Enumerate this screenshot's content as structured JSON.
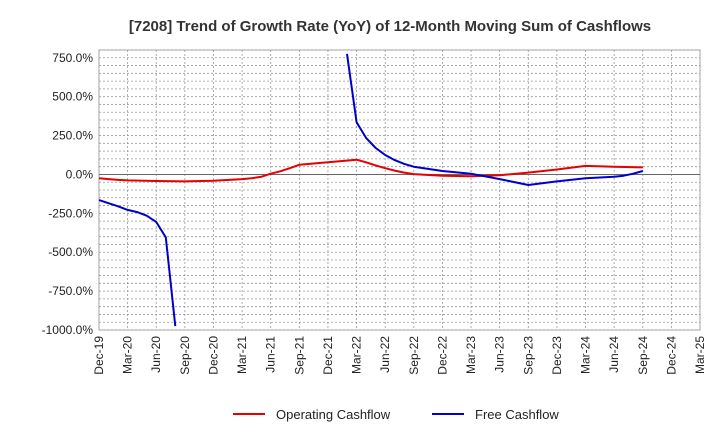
{
  "chart_data": {
    "type": "line",
    "title": "[7208]  Trend of Growth Rate (YoY) of 12-Month Moving Sum of Cashflows",
    "xlabel": "",
    "ylabel": "",
    "ylim": [
      -1000,
      800
    ],
    "grid": true,
    "legend_position": "bottom",
    "y_ticks": [
      {
        "value": 750,
        "label": "750.0%"
      },
      {
        "value": 500,
        "label": "500.0%"
      },
      {
        "value": 250,
        "label": "250.0%"
      },
      {
        "value": 0,
        "label": "0.0%"
      },
      {
        "value": -250,
        "label": "-250.0%"
      },
      {
        "value": -500,
        "label": "-500.0%"
      },
      {
        "value": -750,
        "label": "-750.0%"
      },
      {
        "value": -1000,
        "label": "-1000.0%"
      }
    ],
    "x_ticks": [
      "Dec-19",
      "Mar-20",
      "Jun-20",
      "Sep-20",
      "Dec-20",
      "Mar-21",
      "Jun-21",
      "Sep-21",
      "Dec-21",
      "Mar-22",
      "Jun-22",
      "Sep-22",
      "Dec-22",
      "Mar-23",
      "Jun-23",
      "Sep-23",
      "Dec-23",
      "Mar-24",
      "Jun-24",
      "Sep-24",
      "Dec-24",
      "Mar-25"
    ],
    "series": [
      {
        "name": "Operating Cashflow",
        "color": "#e60000",
        "points": [
          {
            "x": "Dec-19",
            "y": -25
          },
          {
            "x": "Jan-20",
            "y": -30
          },
          {
            "x": "Feb-20",
            "y": -35
          },
          {
            "x": "Mar-20",
            "y": -38
          },
          {
            "x": "Jun-20",
            "y": -42
          },
          {
            "x": "Sep-20",
            "y": -45
          },
          {
            "x": "Dec-20",
            "y": -40
          },
          {
            "x": "Mar-21",
            "y": -30
          },
          {
            "x": "Apr-21",
            "y": -25
          },
          {
            "x": "May-21",
            "y": -15
          },
          {
            "x": "Jun-21",
            "y": 5
          },
          {
            "x": "Jul-21",
            "y": 20
          },
          {
            "x": "Aug-21",
            "y": 40
          },
          {
            "x": "Sep-21",
            "y": 62
          },
          {
            "x": "Dec-21",
            "y": 78
          },
          {
            "x": "Mar-22",
            "y": 95
          },
          {
            "x": "Apr-22",
            "y": 78
          },
          {
            "x": "May-22",
            "y": 58
          },
          {
            "x": "Jun-22",
            "y": 40
          },
          {
            "x": "Jul-22",
            "y": 25
          },
          {
            "x": "Aug-22",
            "y": 12
          },
          {
            "x": "Sep-22",
            "y": 2
          },
          {
            "x": "Dec-22",
            "y": -8
          },
          {
            "x": "Mar-23",
            "y": -12
          },
          {
            "x": "Jun-23",
            "y": -5
          },
          {
            "x": "Sep-23",
            "y": 12
          },
          {
            "x": "Dec-23",
            "y": 32
          },
          {
            "x": "Mar-24",
            "y": 55
          },
          {
            "x": "Jun-24",
            "y": 50
          },
          {
            "x": "Sep-24",
            "y": 45
          }
        ]
      },
      {
        "name": "Free Cashflow",
        "color": "#0000cc",
        "segments": [
          [
            {
              "x": "Dec-19",
              "y": -165
            },
            {
              "x": "Jan-20",
              "y": -185
            },
            {
              "x": "Feb-20",
              "y": -205
            },
            {
              "x": "Mar-20",
              "y": -228
            },
            {
              "x": "Apr-20",
              "y": -242
            },
            {
              "x": "May-20",
              "y": -265
            },
            {
              "x": "Jun-20",
              "y": -305
            },
            {
              "x": "Jul-20",
              "y": -405
            },
            {
              "x": "Aug-20",
              "y": -975
            }
          ],
          [
            {
              "x": "Feb-22",
              "y": 775
            },
            {
              "x": "Mar-22",
              "y": 335
            },
            {
              "x": "Apr-22",
              "y": 235
            },
            {
              "x": "May-22",
              "y": 170
            },
            {
              "x": "Jun-22",
              "y": 125
            },
            {
              "x": "Jul-22",
              "y": 92
            },
            {
              "x": "Aug-22",
              "y": 68
            },
            {
              "x": "Sep-22",
              "y": 50
            },
            {
              "x": "Dec-22",
              "y": 22
            },
            {
              "x": "Mar-23",
              "y": 5
            },
            {
              "x": "Jun-23",
              "y": -30
            },
            {
              "x": "Sep-23",
              "y": -68
            },
            {
              "x": "Dec-23",
              "y": -45
            },
            {
              "x": "Mar-24",
              "y": -25
            },
            {
              "x": "Jun-24",
              "y": -15
            },
            {
              "x": "Jul-24",
              "y": -8
            },
            {
              "x": "Aug-24",
              "y": 5
            },
            {
              "x": "Sep-24",
              "y": 22
            }
          ]
        ]
      }
    ]
  }
}
